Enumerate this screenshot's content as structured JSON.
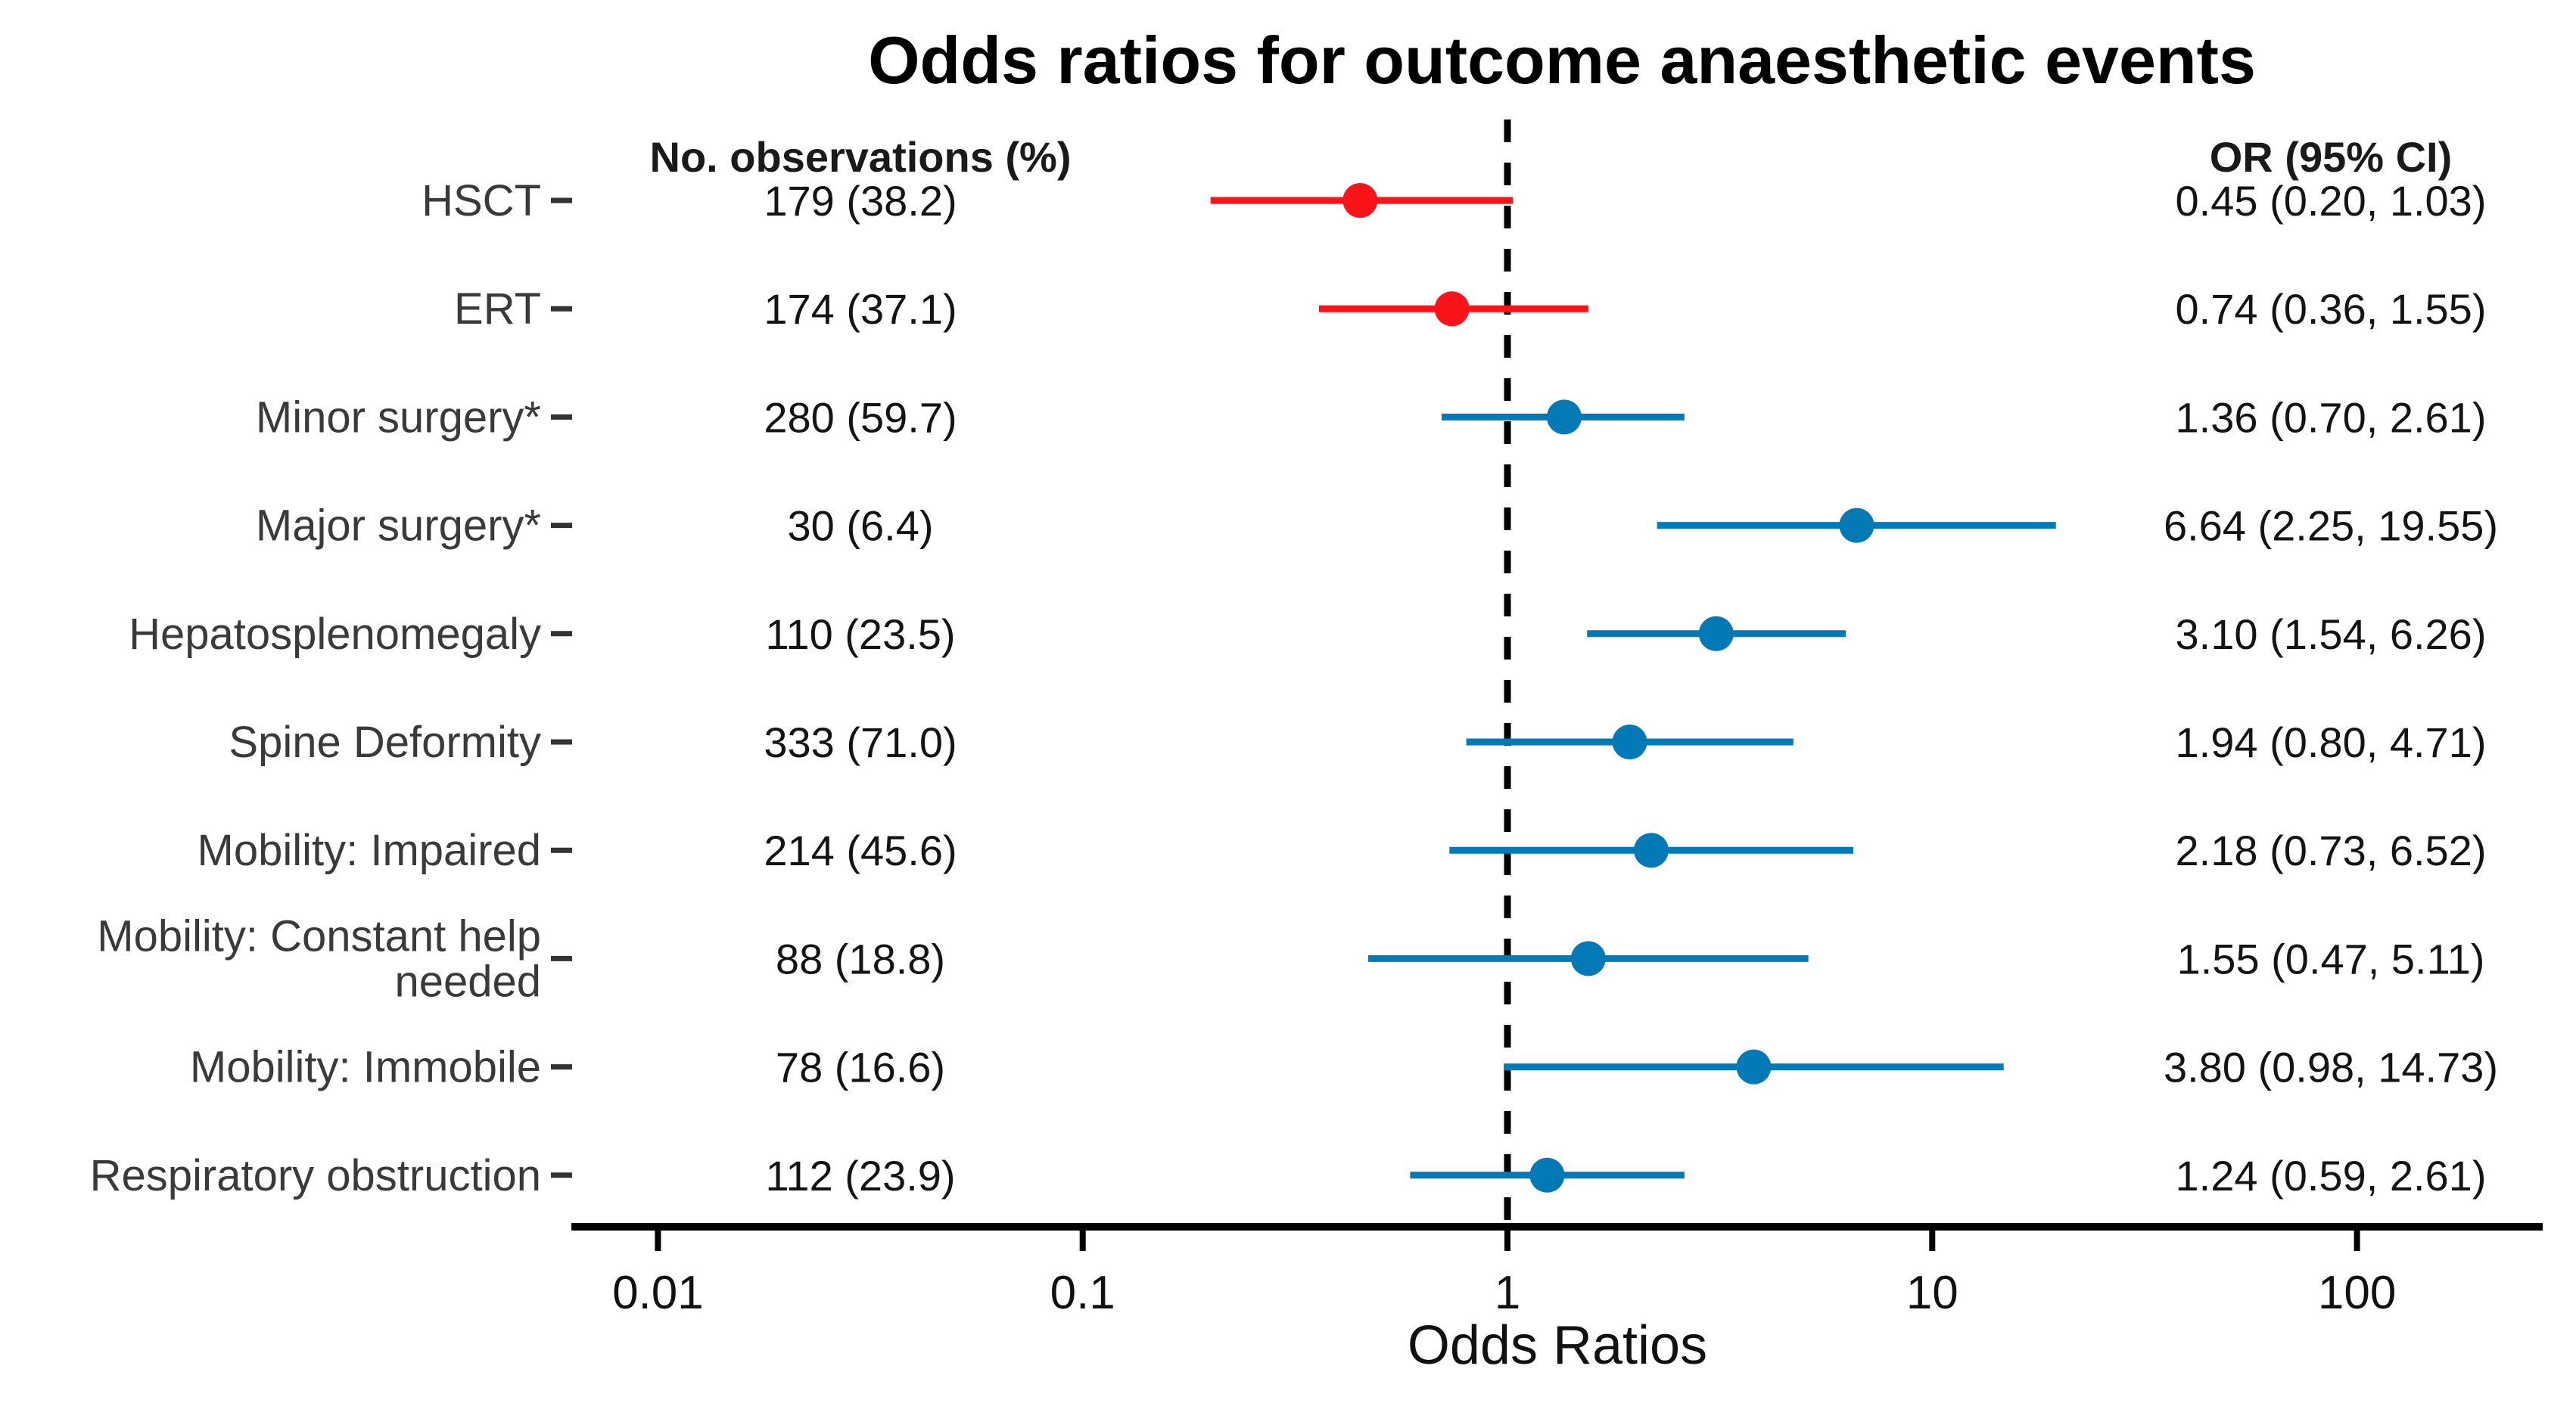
{
  "title": "Odds ratios for outcome anaesthetic events",
  "columns": {
    "observations_header": "No. observations (%)",
    "or_header": "OR (95% CI)"
  },
  "axis": {
    "label": "Odds Ratios",
    "tick_labels": [
      "0.01",
      "0.1",
      "1",
      "10",
      "100"
    ]
  },
  "colors": {
    "red_point": "#fa1419",
    "blue_point": "#0379b5",
    "reference_line": "#000000",
    "axis_line": "#000000",
    "row_label_text": "#3a3a3a",
    "value_text": "#141414"
  },
  "chart_data": {
    "type": "scatter",
    "subtype": "forest-plot",
    "title": "Odds ratios for outcome anaesthetic events",
    "xlabel": "Odds Ratios",
    "x_scale": "log10",
    "x_ticks": [
      0.01,
      0.1,
      1,
      10,
      100
    ],
    "xlim": [
      0.0063,
      285
    ],
    "reference_value": 1,
    "grid": false,
    "legend": false,
    "rows": [
      {
        "label_lines": [
          "HSCT"
        ],
        "observations": "179 (38.2)",
        "or": 0.45,
        "ci_low": 0.2,
        "ci_high": 1.03,
        "or_text": "0.45 (0.20, 1.03)",
        "color_key": "red_point"
      },
      {
        "label_lines": [
          "ERT"
        ],
        "observations": "174 (37.1)",
        "or": 0.74,
        "ci_low": 0.36,
        "ci_high": 1.55,
        "or_text": "0.74 (0.36, 1.55)",
        "color_key": "red_point"
      },
      {
        "label_lines": [
          "Minor surgery*"
        ],
        "observations": "280 (59.7)",
        "or": 1.36,
        "ci_low": 0.7,
        "ci_high": 2.61,
        "or_text": "1.36 (0.70, 2.61)",
        "color_key": "blue_point"
      },
      {
        "label_lines": [
          "Major surgery*"
        ],
        "observations": "30 (6.4)",
        "or": 6.64,
        "ci_low": 2.25,
        "ci_high": 19.55,
        "or_text": "6.64 (2.25, 19.55)",
        "color_key": "blue_point"
      },
      {
        "label_lines": [
          "Hepatosplenomegaly"
        ],
        "observations": "110 (23.5)",
        "or": 3.1,
        "ci_low": 1.54,
        "ci_high": 6.26,
        "or_text": "3.10 (1.54, 6.26)",
        "color_key": "blue_point"
      },
      {
        "label_lines": [
          "Spine Deformity"
        ],
        "observations": "333 (71.0)",
        "or": 1.94,
        "ci_low": 0.8,
        "ci_high": 4.71,
        "or_text": "1.94 (0.80, 4.71)",
        "color_key": "blue_point"
      },
      {
        "label_lines": [
          "Mobility: Impaired"
        ],
        "observations": "214 (45.6)",
        "or": 2.18,
        "ci_low": 0.73,
        "ci_high": 6.52,
        "or_text": "2.18 (0.73, 6.52)",
        "color_key": "blue_point"
      },
      {
        "label_lines": [
          "Mobility: Constant help",
          "needed"
        ],
        "observations": "88 (18.8)",
        "or": 1.55,
        "ci_low": 0.47,
        "ci_high": 5.11,
        "or_text": "1.55 (0.47, 5.11)",
        "color_key": "blue_point"
      },
      {
        "label_lines": [
          "Mobility: Immobile"
        ],
        "observations": "78 (16.6)",
        "or": 3.8,
        "ci_low": 0.98,
        "ci_high": 14.73,
        "or_text": "3.80 (0.98, 14.73)",
        "color_key": "blue_point"
      },
      {
        "label_lines": [
          "Respiratory obstruction"
        ],
        "observations": "112 (23.9)",
        "or": 1.24,
        "ci_low": 0.59,
        "ci_high": 2.61,
        "or_text": "1.24 (0.59, 2.61)",
        "color_key": "blue_point"
      }
    ]
  }
}
